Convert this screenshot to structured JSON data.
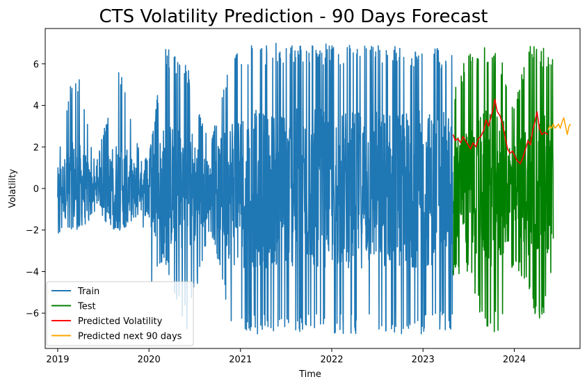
{
  "chart_data": {
    "type": "line",
    "title": "CTS Volatility Prediction - 90 Days Forecast",
    "xlabel": "Time",
    "ylabel": "Volatility",
    "xlim": [
      "2018-11-12",
      "2024-09-20"
    ],
    "ylim": [
      -7.7,
      7.7
    ],
    "x_ticks": [
      {
        "value": "2019-01-01",
        "label": "2019"
      },
      {
        "value": "2020-01-01",
        "label": "2020"
      },
      {
        "value": "2021-01-01",
        "label": "2021"
      },
      {
        "value": "2022-01-01",
        "label": "2022"
      },
      {
        "value": "2023-01-01",
        "label": "2023"
      },
      {
        "value": "2024-01-01",
        "label": "2024"
      }
    ],
    "y_ticks": [
      -6,
      -4,
      -2,
      0,
      2,
      4,
      6
    ],
    "grid": false,
    "legend_position": "lower-left",
    "series": [
      {
        "name": "Train",
        "color": "#1f77b4",
        "style": "high-frequency oscillation (daily values)",
        "x_range": [
          "2019-01-01",
          "2023-04-30"
        ],
        "envelope": [
          {
            "x": "2019-01-01",
            "min": -2.2,
            "max": 1.5
          },
          {
            "x": "2019-02-01",
            "min": -2.0,
            "max": 3.6
          },
          {
            "x": "2019-03-01",
            "min": -2.0,
            "max": 5.5
          },
          {
            "x": "2019-04-01",
            "min": -2.0,
            "max": 5.3
          },
          {
            "x": "2019-06-01",
            "min": -1.2,
            "max": 1.0
          },
          {
            "x": "2019-09-01",
            "min": -2.2,
            "max": 6.2
          },
          {
            "x": "2019-12-01",
            "min": -1.2,
            "max": 1.5
          },
          {
            "x": "2020-01-01",
            "min": -5.0,
            "max": 1.5
          },
          {
            "x": "2020-03-01",
            "min": -3.5,
            "max": 7.0
          },
          {
            "x": "2020-06-01",
            "min": -6.9,
            "max": 6.0
          },
          {
            "x": "2020-09-01",
            "min": -2.0,
            "max": 2.0
          },
          {
            "x": "2020-12-01",
            "min": -7.0,
            "max": 7.0
          },
          {
            "x": "2021-06-01",
            "min": -7.0,
            "max": 7.0
          },
          {
            "x": "2022-01-01",
            "min": -7.0,
            "max": 7.0
          },
          {
            "x": "2022-06-01",
            "min": -7.0,
            "max": 7.0
          },
          {
            "x": "2023-01-01",
            "min": -7.0,
            "max": 6.8
          },
          {
            "x": "2023-04-30",
            "min": -6.8,
            "max": 6.8
          }
        ]
      },
      {
        "name": "Test",
        "color": "#008000",
        "style": "high-frequency oscillation (daily values)",
        "x_range": [
          "2023-05-01",
          "2024-06-05"
        ],
        "envelope": [
          {
            "x": "2023-05-01",
            "min": -4.2,
            "max": 4.5
          },
          {
            "x": "2023-07-01",
            "min": -4.0,
            "max": 6.8
          },
          {
            "x": "2023-09-01",
            "min": -6.9,
            "max": 6.8
          },
          {
            "x": "2023-11-01",
            "min": -6.9,
            "max": 6.8
          },
          {
            "x": "2024-01-01",
            "min": -3.5,
            "max": 4.0
          },
          {
            "x": "2024-03-01",
            "min": -5.2,
            "max": 7.0
          },
          {
            "x": "2024-04-15",
            "min": -6.9,
            "max": 6.9
          },
          {
            "x": "2024-06-05",
            "min": -4.0,
            "max": 6.8
          }
        ]
      },
      {
        "name": "Predicted Volatility",
        "color": "#ff0000",
        "points": [
          [
            "2023-05-01",
            2.6
          ],
          [
            "2023-05-10",
            2.3
          ],
          [
            "2023-05-20",
            2.4
          ],
          [
            "2023-06-01",
            2.2
          ],
          [
            "2023-06-10",
            2.5
          ],
          [
            "2023-06-20",
            2.3
          ],
          [
            "2023-07-01",
            2.1
          ],
          [
            "2023-07-10",
            1.9
          ],
          [
            "2023-07-20",
            2.2
          ],
          [
            "2023-08-01",
            2.0
          ],
          [
            "2023-08-10",
            2.4
          ],
          [
            "2023-08-20",
            2.5
          ],
          [
            "2023-09-01",
            2.8
          ],
          [
            "2023-09-10",
            3.3
          ],
          [
            "2023-09-20",
            3.0
          ],
          [
            "2023-10-01",
            3.5
          ],
          [
            "2023-10-10",
            3.9
          ],
          [
            "2023-10-15",
            4.3
          ],
          [
            "2023-10-25",
            3.7
          ],
          [
            "2023-11-05",
            3.5
          ],
          [
            "2023-11-15",
            3.1
          ],
          [
            "2023-11-25",
            2.5
          ],
          [
            "2023-12-05",
            1.9
          ],
          [
            "2023-12-15",
            1.7
          ],
          [
            "2023-12-25",
            1.8
          ],
          [
            "2024-01-05",
            1.5
          ],
          [
            "2024-01-15",
            1.3
          ],
          [
            "2024-01-25",
            1.2
          ],
          [
            "2024-02-05",
            1.5
          ],
          [
            "2024-02-15",
            1.9
          ],
          [
            "2024-02-25",
            2.3
          ],
          [
            "2024-03-05",
            2.1
          ],
          [
            "2024-03-15",
            2.8
          ],
          [
            "2024-03-25",
            3.3
          ],
          [
            "2024-04-01",
            3.7
          ],
          [
            "2024-04-10",
            2.9
          ],
          [
            "2024-04-20",
            2.6
          ],
          [
            "2024-05-01",
            2.7
          ],
          [
            "2024-05-15",
            2.6
          ]
        ]
      },
      {
        "name": "Predicted next 90 days",
        "color": "#ffa500",
        "points": [
          [
            "2024-05-15",
            2.8
          ],
          [
            "2024-05-22",
            3.0
          ],
          [
            "2024-05-29",
            2.9
          ],
          [
            "2024-06-05",
            3.1
          ],
          [
            "2024-06-12",
            2.9
          ],
          [
            "2024-06-19",
            3.0
          ],
          [
            "2024-06-26",
            3.1
          ],
          [
            "2024-07-03",
            2.9
          ],
          [
            "2024-07-10",
            3.2
          ],
          [
            "2024-07-17",
            3.4
          ],
          [
            "2024-07-24",
            3.0
          ],
          [
            "2024-07-31",
            2.6
          ],
          [
            "2024-08-07",
            3.0
          ],
          [
            "2024-08-13",
            3.1
          ]
        ]
      }
    ]
  }
}
